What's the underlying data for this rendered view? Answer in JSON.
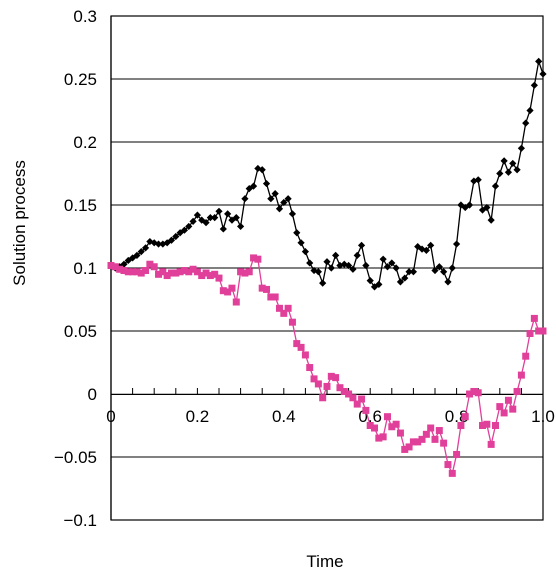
{
  "chart_data": {
    "type": "line",
    "title": "",
    "xlabel": "Time",
    "ylabel": "Solution process",
    "xlim": [
      0,
      1.0
    ],
    "ylim": [
      -0.1,
      0.3
    ],
    "x_ticks": [
      0,
      0.2,
      0.4,
      0.6,
      0.8,
      1.0
    ],
    "x_tick_labels": [
      "0",
      "0.2",
      "0.4",
      "0.6",
      "0.8",
      "1.0"
    ],
    "y_ticks": [
      -0.1,
      -0.05,
      0,
      0.05,
      0.1,
      0.15,
      0.2,
      0.25,
      0.3
    ],
    "y_tick_labels": [
      "−0.1",
      "−0.05",
      "0",
      "0.05",
      "0.1",
      "0.15",
      "0.2",
      "0.25",
      "0.3"
    ],
    "grid": "horizontal",
    "legend": "none",
    "series": [
      {
        "color": "#000000",
        "marker": "diamond",
        "x": [
          0.0,
          0.01,
          0.02,
          0.03,
          0.04,
          0.05,
          0.06,
          0.07,
          0.08,
          0.09,
          0.1,
          0.11,
          0.12,
          0.13,
          0.14,
          0.15,
          0.16,
          0.17,
          0.18,
          0.19,
          0.2,
          0.21,
          0.22,
          0.23,
          0.24,
          0.25,
          0.26,
          0.27,
          0.28,
          0.29,
          0.3,
          0.31,
          0.32,
          0.33,
          0.34,
          0.35,
          0.36,
          0.37,
          0.38,
          0.39,
          0.4,
          0.41,
          0.42,
          0.43,
          0.44,
          0.45,
          0.46,
          0.47,
          0.48,
          0.49,
          0.5,
          0.51,
          0.52,
          0.53,
          0.54,
          0.55,
          0.56,
          0.57,
          0.58,
          0.59,
          0.6,
          0.61,
          0.62,
          0.63,
          0.64,
          0.65,
          0.66,
          0.67,
          0.68,
          0.69,
          0.7,
          0.71,
          0.72,
          0.73,
          0.74,
          0.75,
          0.76,
          0.77,
          0.78,
          0.79,
          0.8,
          0.81,
          0.82,
          0.83,
          0.84,
          0.85,
          0.86,
          0.87,
          0.88,
          0.89,
          0.9,
          0.91,
          0.92,
          0.93,
          0.94,
          0.95,
          0.96,
          0.97,
          0.98,
          0.99,
          1.0
        ],
        "values": [
          0.102,
          0.1,
          0.101,
          0.103,
          0.106,
          0.108,
          0.11,
          0.113,
          0.116,
          0.121,
          0.12,
          0.119,
          0.119,
          0.12,
          0.122,
          0.125,
          0.128,
          0.13,
          0.133,
          0.137,
          0.142,
          0.138,
          0.136,
          0.14,
          0.14,
          0.145,
          0.131,
          0.143,
          0.138,
          0.14,
          0.133,
          0.155,
          0.163,
          0.165,
          0.179,
          0.178,
          0.167,
          0.155,
          0.159,
          0.147,
          0.152,
          0.155,
          0.143,
          0.128,
          0.12,
          0.113,
          0.104,
          0.098,
          0.097,
          0.088,
          0.105,
          0.1,
          0.11,
          0.102,
          0.103,
          0.102,
          0.099,
          0.11,
          0.118,
          0.102,
          0.09,
          0.085,
          0.087,
          0.107,
          0.101,
          0.104,
          0.1,
          0.089,
          0.092,
          0.097,
          0.097,
          0.117,
          0.115,
          0.114,
          0.118,
          0.098,
          0.101,
          0.097,
          0.089,
          0.1,
          0.119,
          0.15,
          0.148,
          0.15,
          0.169,
          0.17,
          0.146,
          0.148,
          0.138,
          0.165,
          0.175,
          0.185,
          0.176,
          0.183,
          0.178,
          0.195,
          0.215,
          0.225,
          0.245,
          0.264,
          0.254
        ]
      },
      {
        "color": "#e0409a",
        "marker": "square",
        "x": [
          0.0,
          0.01,
          0.02,
          0.03,
          0.04,
          0.05,
          0.06,
          0.07,
          0.08,
          0.09,
          0.1,
          0.11,
          0.12,
          0.13,
          0.14,
          0.15,
          0.16,
          0.17,
          0.18,
          0.19,
          0.2,
          0.21,
          0.22,
          0.23,
          0.24,
          0.25,
          0.26,
          0.27,
          0.28,
          0.29,
          0.3,
          0.31,
          0.32,
          0.33,
          0.34,
          0.35,
          0.36,
          0.37,
          0.38,
          0.39,
          0.4,
          0.41,
          0.42,
          0.43,
          0.44,
          0.45,
          0.46,
          0.47,
          0.48,
          0.49,
          0.5,
          0.51,
          0.52,
          0.53,
          0.54,
          0.55,
          0.56,
          0.57,
          0.58,
          0.59,
          0.6,
          0.61,
          0.62,
          0.63,
          0.64,
          0.65,
          0.66,
          0.67,
          0.68,
          0.69,
          0.7,
          0.71,
          0.72,
          0.73,
          0.74,
          0.75,
          0.76,
          0.77,
          0.78,
          0.79,
          0.8,
          0.81,
          0.82,
          0.83,
          0.84,
          0.85,
          0.86,
          0.87,
          0.88,
          0.89,
          0.9,
          0.91,
          0.92,
          0.93,
          0.94,
          0.95,
          0.96,
          0.97,
          0.98,
          0.99,
          1.0
        ],
        "values": [
          0.102,
          0.101,
          0.099,
          0.098,
          0.097,
          0.097,
          0.097,
          0.096,
          0.098,
          0.103,
          0.101,
          0.095,
          0.097,
          0.094,
          0.096,
          0.096,
          0.097,
          0.098,
          0.097,
          0.099,
          0.097,
          0.094,
          0.096,
          0.094,
          0.095,
          0.092,
          0.082,
          0.081,
          0.084,
          0.073,
          0.097,
          0.096,
          0.097,
          0.108,
          0.107,
          0.084,
          0.083,
          0.077,
          0.077,
          0.068,
          0.064,
          0.068,
          0.057,
          0.04,
          0.037,
          0.031,
          0.021,
          0.012,
          0.008,
          -0.003,
          0.006,
          0.014,
          0.013,
          0.005,
          0.002,
          0.0,
          -0.003,
          -0.008,
          -0.004,
          -0.013,
          -0.025,
          -0.027,
          -0.035,
          -0.034,
          -0.018,
          -0.026,
          -0.024,
          -0.031,
          -0.044,
          -0.042,
          -0.038,
          -0.038,
          -0.036,
          -0.032,
          -0.027,
          -0.036,
          -0.029,
          -0.039,
          -0.056,
          -0.063,
          -0.048,
          -0.025,
          -0.018,
          0.0,
          0.002,
          0.001,
          -0.025,
          -0.024,
          -0.04,
          -0.025,
          -0.01,
          -0.015,
          -0.005,
          -0.012,
          0.002,
          0.015,
          0.03,
          0.048,
          0.06,
          0.05,
          0.05
        ]
      }
    ]
  }
}
